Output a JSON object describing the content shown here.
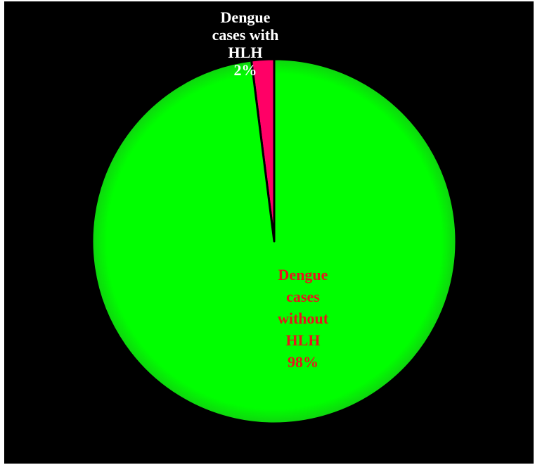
{
  "chart_data": {
    "type": "pie",
    "title": "",
    "slices": [
      {
        "label_lines": [
          "Dengue",
          "cases with",
          "HLH",
          "2%"
        ],
        "value": 2,
        "color": "#ff0066",
        "label_color": "#ffffff"
      },
      {
        "label_lines": [
          "Dengue",
          "cases",
          "without",
          "HLH",
          "98%"
        ],
        "value": 98,
        "color": "#00ff00",
        "label_color": "#e8141c"
      }
    ],
    "background": "#000000",
    "slice_border": "#000000",
    "legend": "none",
    "start_angle_deg": 0,
    "direction": "clockwise"
  }
}
